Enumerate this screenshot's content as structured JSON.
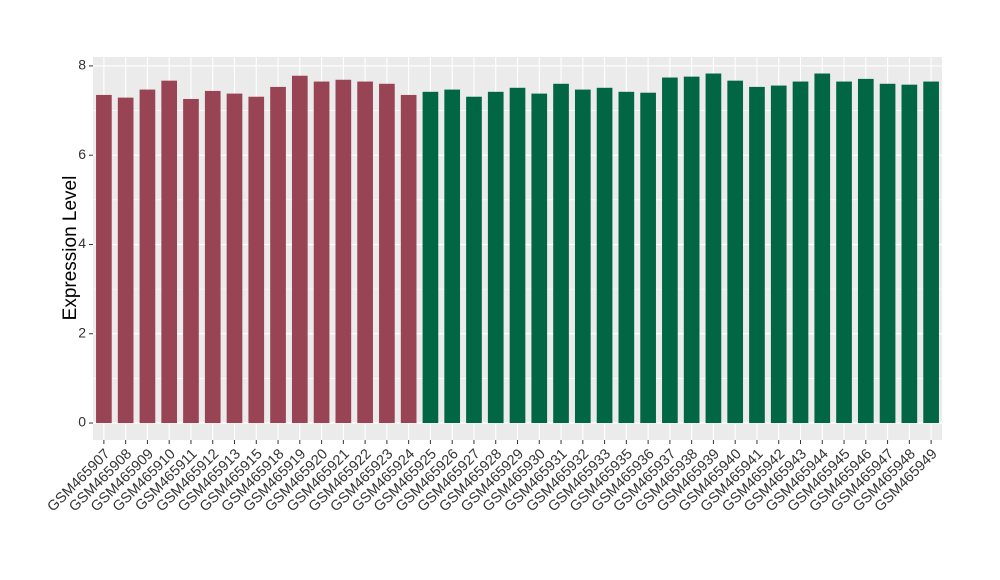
{
  "chart_data": {
    "type": "bar",
    "y_label": "Expression Level",
    "categories": [
      "GSM465907",
      "GSM465908",
      "GSM465909",
      "GSM465910",
      "GSM465911",
      "GSM465912",
      "GSM465913",
      "GSM465915",
      "GSM465918",
      "GSM465919",
      "GSM465920",
      "GSM465921",
      "GSM465922",
      "GSM465923",
      "GSM465924",
      "GSM465925",
      "GSM465926",
      "GSM465927",
      "GSM465928",
      "GSM465929",
      "GSM465930",
      "GSM465931",
      "GSM465932",
      "GSM465933",
      "GSM465935",
      "GSM465936",
      "GSM465937",
      "GSM465938",
      "GSM465939",
      "GSM465940",
      "GSM465941",
      "GSM465942",
      "GSM465943",
      "GSM465944",
      "GSM465945",
      "GSM465946",
      "GSM465947",
      "GSM465948",
      "GSM465949"
    ],
    "values": [
      7.35,
      7.29,
      7.47,
      7.67,
      7.26,
      7.44,
      7.38,
      7.31,
      7.53,
      7.78,
      7.65,
      7.69,
      7.65,
      7.6,
      7.35,
      7.42,
      7.47,
      7.31,
      7.42,
      7.51,
      7.38,
      7.6,
      7.47,
      7.51,
      7.42,
      7.4,
      7.74,
      7.76,
      7.83,
      7.67,
      7.53,
      7.56,
      7.65,
      7.83,
      7.65,
      7.71,
      7.6,
      7.58,
      7.65
    ],
    "colors": [
      "#994455",
      "#994455",
      "#994455",
      "#994455",
      "#994455",
      "#994455",
      "#994455",
      "#994455",
      "#994455",
      "#994455",
      "#994455",
      "#994455",
      "#994455",
      "#994455",
      "#994455",
      "#006644",
      "#006644",
      "#006644",
      "#006644",
      "#006644",
      "#006644",
      "#006644",
      "#006644",
      "#006644",
      "#006644",
      "#006644",
      "#006644",
      "#006644",
      "#006644",
      "#006644",
      "#006644",
      "#006644",
      "#006644",
      "#006644",
      "#006644",
      "#006644",
      "#006644",
      "#006644",
      "#006644"
    ],
    "ylim": [
      -0.38,
      8.2
    ],
    "yticks": [
      0,
      2,
      4,
      6,
      8
    ],
    "grid": true
  }
}
